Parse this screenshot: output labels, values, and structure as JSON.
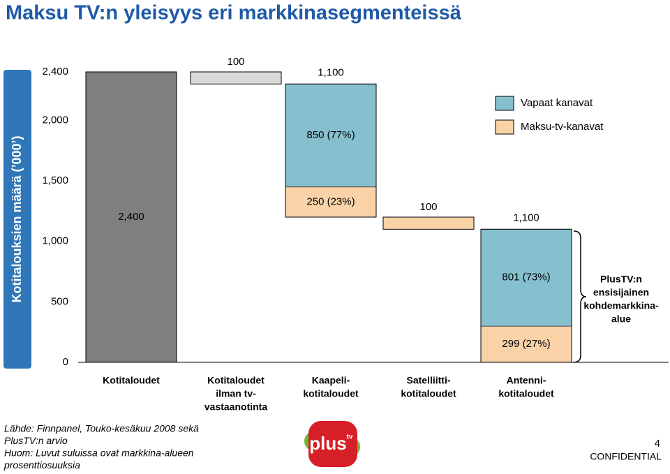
{
  "chart_data": {
    "type": "waterfall",
    "title": "Maksu TV:n yleisyys eri markkinasegmenteissä",
    "y_label": "Kotitalouksien määrä (’000’)",
    "categories": [
      [
        "Kotitaloudet"
      ],
      [
        "Kotitaloudet",
        "ilman tv-",
        "vastaanotinta"
      ],
      [
        "Kaapeli-",
        "kotitaloudet"
      ],
      [
        "Satelliitti-",
        "kotitaloudet"
      ],
      [
        "Antenni-",
        "kotitaloudet"
      ]
    ],
    "totals": {
      "values": [
        2400,
        100,
        1100,
        100,
        1100
      ],
      "value_labels": [
        "2,400",
        "100",
        "1,100",
        "100",
        "1,100"
      ],
      "colors": [
        "#7f7f7f",
        "#d9d9d9",
        null,
        "#f9d2a8",
        null
      ]
    },
    "series": [
      {
        "name": "Vapaat kanavat",
        "color": "#86c0cf",
        "values": [
          null,
          null,
          850,
          null,
          801
        ],
        "value_labels": [
          null,
          null,
          "850 (77%)",
          null,
          "801 (73%)"
        ]
      },
      {
        "name": "Maksu-tv-kanavat",
        "color": "#f9d2a8",
        "values": [
          null,
          null,
          250,
          null,
          299
        ],
        "value_labels": [
          null,
          null,
          "250 (23%)",
          null,
          "299 (27%)"
        ]
      }
    ],
    "ylim": [
      0,
      2400
    ],
    "yticks": [
      0,
      500,
      {
        "value": 1000,
        "label": "1,000"
      },
      {
        "value": 1500,
        "label": "1,500"
      },
      {
        "value": 2000,
        "label": "2,000"
      },
      {
        "value": 2400,
        "label": "2,400"
      }
    ],
    "annotation": [
      "PlusTV:n",
      "ensisijainen",
      "kohdemarkkina-",
      "alue"
    ]
  },
  "footer": {
    "notes": [
      "Lähde: Finnpanel, Touko-kesäkuu 2008 sekä",
      "PlusTV:n arvio",
      "Huom: Luvut suluissa ovat markkina-alueen",
      "prosenttiosuuksia"
    ],
    "logo": [
      "plus",
      "tv"
    ],
    "page": "4",
    "confidential": "CONFIDENTIAL"
  }
}
